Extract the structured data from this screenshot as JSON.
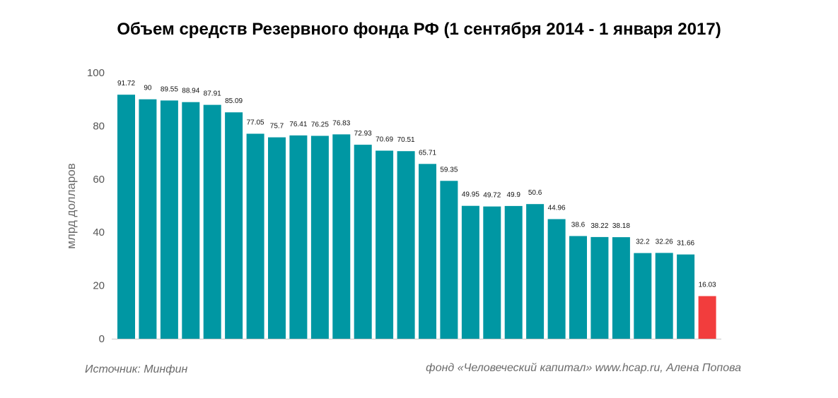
{
  "chart_data": {
    "type": "bar",
    "title": "Объем средств Резервного фонда РФ (1 сентября 2014 - 1 января 2017)",
    "xlabel": "",
    "ylabel": "млрд долларов",
    "ylim": [
      0,
      100
    ],
    "yticks": [
      "0",
      "20",
      "40",
      "60",
      "80",
      "100"
    ],
    "values": [
      91.72,
      90,
      89.55,
      88.94,
      87.91,
      85.09,
      77.05,
      75.7,
      76.41,
      76.25,
      76.83,
      72.93,
      70.69,
      70.51,
      65.71,
      59.35,
      49.95,
      49.72,
      49.9,
      50.6,
      44.96,
      38.6,
      38.22,
      38.18,
      32.2,
      32.26,
      31.66,
      16.03
    ],
    "labels": [
      "91.72",
      "90",
      "89.55",
      "88.94",
      "87.91",
      "85.09",
      "77.05",
      "75.7",
      "76.41",
      "76.25",
      "76.83",
      "72.93",
      "70.69",
      "70.51",
      "65.71",
      "59.35",
      "49.95",
      "49.72",
      "49.9",
      "50.6",
      "44.96",
      "38.6",
      "38.22",
      "38.18",
      "32.2",
      "32.26",
      "31.66",
      "16.03"
    ],
    "bar_color": "#0097a3",
    "highlight_color": "#f23d3d",
    "highlight_index": 27,
    "grid": false
  },
  "footer": {
    "source": "Источник: Минфин",
    "credit": "фонд «Человеческий капитал» www.hcap.ru, Алена Попова"
  }
}
